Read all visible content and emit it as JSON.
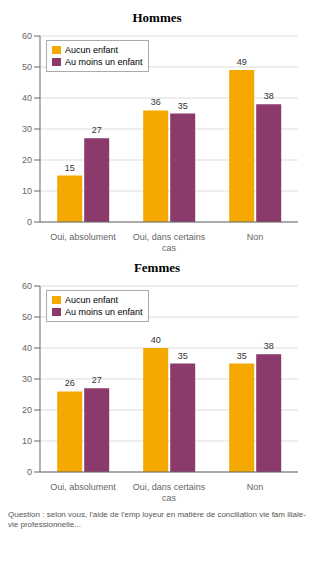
{
  "chart_data": [
    {
      "type": "bar",
      "title": "Hommes",
      "categories": [
        "Oui, absolument",
        "Oui, dans certains\ncas",
        "Non"
      ],
      "series": [
        {
          "name": "Aucun enfant",
          "color": "#F5A800",
          "values": [
            15,
            36,
            49
          ]
        },
        {
          "name": "Au moins un enfant",
          "color": "#8B3A6B",
          "values": [
            27,
            35,
            38
          ]
        }
      ],
      "ylim": [
        0,
        60
      ],
      "yticks": [
        0,
        10,
        20,
        30,
        40,
        50,
        60
      ],
      "grid": true,
      "legend": "upper left",
      "data_labels": true
    },
    {
      "type": "bar",
      "title": "Femmes",
      "categories": [
        "Oui, absolument",
        "Oui, dans certains\ncas",
        "Non"
      ],
      "series": [
        {
          "name": "Aucun enfant",
          "color": "#F5A800",
          "values": [
            26,
            40,
            35
          ]
        },
        {
          "name": "Au moins un enfant",
          "color": "#8B3A6B",
          "values": [
            27,
            35,
            38
          ]
        }
      ],
      "ylim": [
        0,
        60
      ],
      "yticks": [
        0,
        10,
        20,
        30,
        40,
        50,
        60
      ],
      "grid": true,
      "legend": "upper left",
      "data_labels": true,
      "annotations": [
        "Question : selon vous, l'aide de l'emp loyeur en matière de conciliation vie fam iliale-vie professionnelle..."
      ]
    }
  ]
}
